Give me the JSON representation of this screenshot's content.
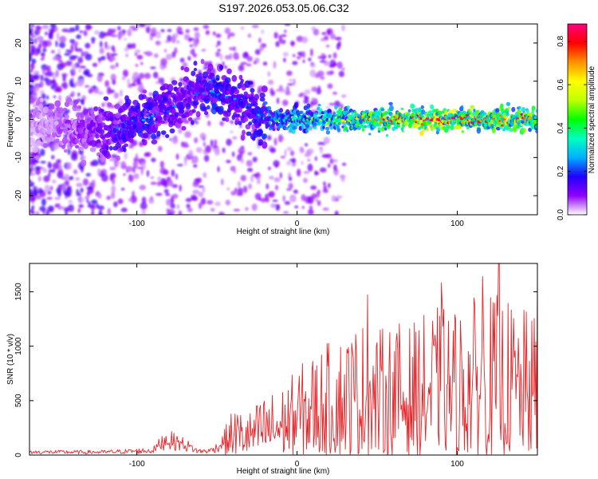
{
  "title": "S197.2026.053.05.06.C32",
  "chart_data": [
    {
      "type": "heatmap",
      "xlabel": "Height of straight line (km)",
      "ylabel": "Frequency (Hz)",
      "xlim": [
        -167,
        150
      ],
      "ylim": [
        -25,
        25
      ],
      "xticks": [
        -100,
        0,
        100
      ],
      "yticks": [
        -20,
        -10,
        0,
        10,
        20
      ],
      "colorbar": {
        "label": "Normalized spectral amplitude",
        "range": [
          0,
          0.88
        ],
        "ticks": [
          "0.0",
          "0.2",
          "0.4",
          "0.6",
          "0.8"
        ],
        "tick_values": [
          0,
          0.2,
          0.4,
          0.6,
          0.8
        ],
        "colors": [
          "#ffffff",
          "#9000ff",
          "#2000ff",
          "#00b0ff",
          "#00ffc0",
          "#00ff00",
          "#c0ff00",
          "#ffff00",
          "#ff9000",
          "#ff0000",
          "#ff0080"
        ]
      },
      "ridge": [
        {
          "x": -167,
          "y": -2,
          "amp": 0.05
        },
        {
          "x": -150,
          "y": -1,
          "amp": 0.07
        },
        {
          "x": -135,
          "y": -2,
          "amp": 0.1
        },
        {
          "x": -122,
          "y": -4,
          "amp": 0.13
        },
        {
          "x": -110,
          "y": -2,
          "amp": 0.18
        },
        {
          "x": -100,
          "y": 0,
          "amp": 0.2
        },
        {
          "x": -90,
          "y": 1,
          "amp": 0.2
        },
        {
          "x": -80,
          "y": 3,
          "amp": 0.18
        },
        {
          "x": -70,
          "y": 5,
          "amp": 0.15
        },
        {
          "x": -60,
          "y": 7,
          "amp": 0.2
        },
        {
          "x": -52,
          "y": 8,
          "amp": 0.22
        },
        {
          "x": -44,
          "y": 6,
          "amp": 0.2
        },
        {
          "x": -35,
          "y": 4,
          "amp": 0.18
        },
        {
          "x": -25,
          "y": 1,
          "amp": 0.2
        },
        {
          "x": -15,
          "y": 0,
          "amp": 0.28
        },
        {
          "x": 0,
          "y": 0,
          "amp": 0.35
        },
        {
          "x": 20,
          "y": 0,
          "amp": 0.4
        },
        {
          "x": 40,
          "y": 0,
          "amp": 0.5
        },
        {
          "x": 60,
          "y": 0,
          "amp": 0.55
        },
        {
          "x": 80,
          "y": 0,
          "amp": 0.65
        },
        {
          "x": 100,
          "y": 0,
          "amp": 0.6
        },
        {
          "x": 120,
          "y": 0,
          "amp": 0.55
        },
        {
          "x": 140,
          "y": 0,
          "amp": 0.6
        },
        {
          "x": 150,
          "y": 0,
          "amp": 0.5
        }
      ]
    },
    {
      "type": "line",
      "xlabel": "Height of straight line (km)",
      "ylabel": "SNR (10 * v/v)",
      "xlim": [
        -167,
        150
      ],
      "ylim": [
        0,
        1760
      ],
      "xticks": [
        -100,
        0,
        100
      ],
      "yticks": [
        0,
        500,
        1000,
        1500
      ],
      "color": "#e8262a",
      "envelope": [
        {
          "x": -167,
          "y": 45
        },
        {
          "x": -120,
          "y": 45
        },
        {
          "x": -100,
          "y": 60
        },
        {
          "x": -90,
          "y": 70
        },
        {
          "x": -82,
          "y": 240
        },
        {
          "x": -70,
          "y": 160
        },
        {
          "x": -62,
          "y": 60
        },
        {
          "x": -55,
          "y": 60
        },
        {
          "x": -48,
          "y": 140
        },
        {
          "x": -40,
          "y": 440
        },
        {
          "x": -30,
          "y": 400
        },
        {
          "x": -20,
          "y": 560
        },
        {
          "x": -10,
          "y": 620
        },
        {
          "x": 0,
          "y": 800
        },
        {
          "x": 10,
          "y": 950
        },
        {
          "x": 20,
          "y": 1050
        },
        {
          "x": 30,
          "y": 1150
        },
        {
          "x": 40,
          "y": 1250
        },
        {
          "x": 50,
          "y": 1150
        },
        {
          "x": 60,
          "y": 1250
        },
        {
          "x": 70,
          "y": 1200
        },
        {
          "x": 80,
          "y": 1300
        },
        {
          "x": 90,
          "y": 1400
        },
        {
          "x": 100,
          "y": 1350
        },
        {
          "x": 110,
          "y": 1450
        },
        {
          "x": 120,
          "y": 1500
        },
        {
          "x": 130,
          "y": 1450
        },
        {
          "x": 140,
          "y": 1350
        },
        {
          "x": 150,
          "y": 1300
        }
      ],
      "peaks": [
        {
          "x": 44,
          "y": 1470
        },
        {
          "x": 90,
          "y": 1580
        },
        {
          "x": 116,
          "y": 1640
        },
        {
          "x": 126,
          "y": 1760
        },
        {
          "x": 150,
          "y": 1660
        }
      ]
    }
  ]
}
